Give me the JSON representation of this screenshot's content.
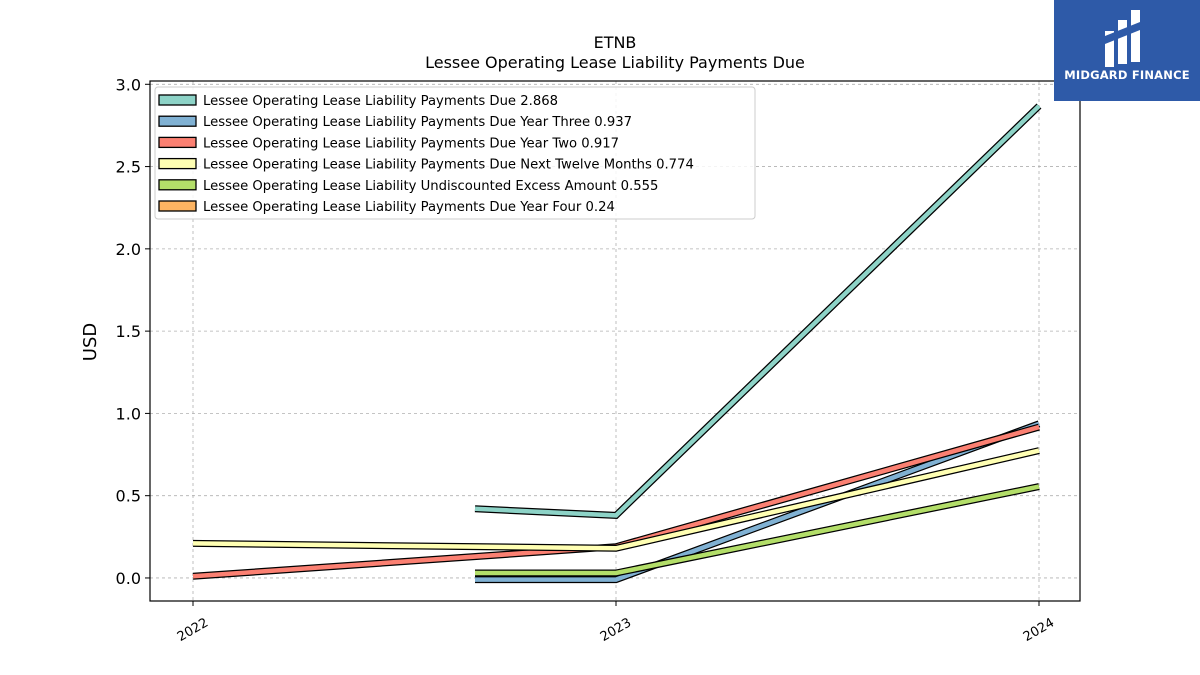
{
  "chart_data": {
    "type": "line",
    "title": "ETNB",
    "subtitle": "Lessee Operating Lease Liability Payments Due",
    "xlabel": "",
    "ylabel": "USD",
    "x": [
      "2022",
      "2023",
      "2024"
    ],
    "ylim": [
      -0.14,
      3.02
    ],
    "yticks": [
      "0.0",
      "0.5",
      "1.0",
      "1.5",
      "2.0",
      "2.5",
      "3.0"
    ],
    "grid": true,
    "legend_position": "top-left",
    "series": [
      {
        "name": "Lessee Operating Lease Liability Payments Due",
        "legend_label": "Lessee Operating Lease Liability Payments Due  2.868",
        "color": "#8dd3c7",
        "points": [
          {
            "x": "2022-09",
            "y": 0.42
          },
          {
            "x": "2023",
            "y": 0.38
          },
          {
            "x": "2024",
            "y": 2.868
          }
        ]
      },
      {
        "name": "Lessee Operating Lease Liability Payments Due Year Three",
        "legend_label": "Lessee Operating Lease Liability Payments Due Year Three  0.937",
        "color": "#80b1d3",
        "points": [
          {
            "x": "2022-09",
            "y": -0.01
          },
          {
            "x": "2023",
            "y": -0.01
          },
          {
            "x": "2024",
            "y": 0.937
          }
        ]
      },
      {
        "name": "Lessee Operating Lease Liability Payments Due Year Two",
        "legend_label": "Lessee Operating Lease Liability Payments Due Year Two  0.917",
        "color": "#fb8072",
        "points": [
          {
            "x": "2022",
            "y": 0.01
          },
          {
            "x": "2023",
            "y": 0.19
          },
          {
            "x": "2024",
            "y": 0.917
          }
        ]
      },
      {
        "name": "Lessee Operating Lease Liability Payments Due Next Twelve Months",
        "legend_label": "Lessee Operating Lease Liability Payments Due Next Twelve Months  0.774",
        "color": "#ffffb3",
        "points": [
          {
            "x": "2022",
            "y": 0.21
          },
          {
            "x": "2023",
            "y": 0.18
          },
          {
            "x": "2024",
            "y": 0.774
          }
        ]
      },
      {
        "name": "Lessee Operating Lease Liability Undiscounted Excess Amount",
        "legend_label": "Lessee Operating Lease Liability Undiscounted Excess Amount  0.555",
        "color": "#b3de69",
        "points": [
          {
            "x": "2022-09",
            "y": 0.03
          },
          {
            "x": "2023",
            "y": 0.03
          },
          {
            "x": "2024",
            "y": 0.555
          }
        ]
      },
      {
        "name": "Lessee Operating Lease Liability Payments Due Year Four",
        "legend_label": "Lessee Operating Lease Liability Payments Due Year Four  0.24",
        "color": "#fdb462",
        "points": []
      }
    ]
  },
  "logo": {
    "text": "MIDGARD FINANCE",
    "background": "#2e5aa8"
  }
}
